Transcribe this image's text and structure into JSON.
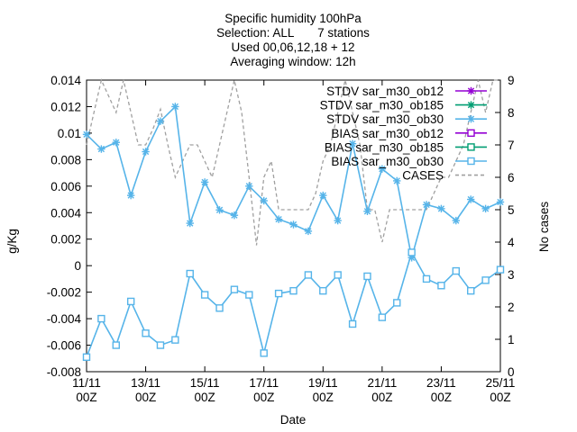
{
  "chart_data": {
    "type": "line",
    "title": [
      "Specific humidity 100hPa",
      "Selection: ALL       7 stations",
      "Used 00,06,12,18 + 12",
      "Averaging window: 12h"
    ],
    "xlabel": "Date",
    "ylabel": "g/Kg",
    "y2label": "No cases",
    "ylim": [
      -0.008,
      0.014
    ],
    "y2lim": [
      0,
      9
    ],
    "xlim": [
      0,
      28
    ],
    "yticks": [
      "-0.008",
      "-0.006",
      "-0.004",
      "-0.002",
      "0",
      "0.002",
      "0.004",
      "0.006",
      "0.008",
      "0.01",
      "0.012",
      "0.014"
    ],
    "y2ticks": [
      "0",
      "1",
      "2",
      "3",
      "4",
      "5",
      "6",
      "7",
      "8",
      "9"
    ],
    "xticks": [
      {
        "x": 0,
        "line1": "11/11",
        "line2": "00Z"
      },
      {
        "x": 4,
        "line1": "13/11",
        "line2": "00Z"
      },
      {
        "x": 8,
        "line1": "15/11",
        "line2": "00Z"
      },
      {
        "x": 12,
        "line1": "17/11",
        "line2": "00Z"
      },
      {
        "x": 16,
        "line1": "19/11",
        "line2": "00Z"
      },
      {
        "x": 20,
        "line1": "21/11",
        "line2": "00Z"
      },
      {
        "x": 24,
        "line1": "23/11",
        "line2": "00Z"
      },
      {
        "x": 28,
        "line1": "25/11",
        "line2": "00Z"
      }
    ],
    "legend": [
      {
        "label": "STDV sar_m30_ob12",
        "color": "#9400d3",
        "style": "star"
      },
      {
        "label": "STDV sar_m30_ob185",
        "color": "#009e73",
        "style": "star"
      },
      {
        "label": "STDV sar_m30_ob30",
        "color": "#56b4e9",
        "style": "star"
      },
      {
        "label": "BIAS sar_m30_ob12",
        "color": "#9400d3",
        "style": "square"
      },
      {
        "label": "BIAS sar_m30_ob185",
        "color": "#009e73",
        "style": "square"
      },
      {
        "label": "BIAS sar_m30_ob30",
        "color": "#56b4e9",
        "style": "square"
      },
      {
        "label": "CASES",
        "color": "#a0a0a0",
        "style": "dash"
      }
    ],
    "legend_position": "top-right",
    "series": [
      {
        "name": "STDV sar_m30_ob30",
        "color": "#56b4e9",
        "marker": "star",
        "axis": "y",
        "x": [
          0,
          1,
          2,
          3,
          4,
          5,
          6,
          7,
          8,
          9,
          10,
          11,
          12,
          13,
          14,
          15,
          16,
          17,
          18,
          19,
          20,
          21,
          22,
          23,
          24,
          25,
          26,
          27,
          28
        ],
        "y": [
          0.0099,
          0.0088,
          0.0093,
          0.0053,
          0.0086,
          0.0109,
          0.012,
          0.0032,
          0.0063,
          0.0042,
          0.0038,
          0.006,
          0.0049,
          0.0035,
          0.0031,
          0.0026,
          0.0053,
          0.0034,
          0.0092,
          0.0041,
          0.0073,
          0.0064,
          0.0006,
          0.0046,
          0.0043,
          0.0034,
          0.005,
          0.0043,
          0.0048
        ]
      },
      {
        "name": "BIAS sar_m30_ob30",
        "color": "#56b4e9",
        "marker": "square",
        "axis": "y",
        "x": [
          0,
          1,
          2,
          3,
          4,
          5,
          6,
          7,
          8,
          9,
          10,
          11,
          12,
          13,
          14,
          15,
          16,
          17,
          18,
          19,
          20,
          21,
          22,
          23,
          24,
          25,
          26,
          27,
          28
        ],
        "y": [
          -0.0069,
          -0.004,
          -0.006,
          -0.0027,
          -0.0051,
          -0.006,
          -0.0056,
          -0.0006,
          -0.0022,
          -0.0032,
          -0.0018,
          -0.0022,
          -0.0066,
          -0.0021,
          -0.0019,
          -0.0007,
          -0.0019,
          -0.0007,
          -0.0044,
          -0.0008,
          -0.0039,
          -0.0028,
          0.001,
          -0.001,
          -0.0015,
          -0.0004,
          -0.0019,
          -0.0011,
          -0.0003
        ]
      },
      {
        "name": "CASES",
        "color": "#a0a0a0",
        "marker": "none",
        "dashed": true,
        "axis": "y2",
        "x": [
          0,
          0.5,
          1,
          1.5,
          2,
          2.5,
          3,
          3.5,
          4,
          4.5,
          5,
          5.5,
          6,
          6.5,
          7,
          7.5,
          8,
          8.5,
          9,
          9.5,
          10,
          10.5,
          11,
          11.5,
          12,
          12.5,
          13,
          13.5,
          14,
          14.5,
          15,
          15.5,
          16,
          16.5,
          17,
          17.5,
          18,
          18.5,
          19,
          19.5,
          20,
          20.5,
          21,
          21.5,
          22,
          22.5,
          23,
          23.5,
          24,
          24.5,
          25,
          25.5,
          26,
          26.5,
          27,
          27.5,
          28
        ],
        "y": [
          7,
          8,
          9,
          8.5,
          8,
          9,
          8,
          7,
          7,
          7.5,
          8.1,
          7,
          6,
          6.5,
          7,
          7,
          6.5,
          6,
          7,
          8,
          9,
          8,
          6,
          3.9,
          6,
          6.5,
          5,
          5,
          5,
          5,
          5,
          5.5,
          6.5,
          7,
          8,
          9,
          8,
          7,
          5,
          5,
          4,
          5,
          5,
          5,
          5,
          5,
          5,
          5.5,
          6,
          6,
          6.5,
          7,
          8,
          9,
          8,
          9,
          9
        ]
      }
    ]
  }
}
